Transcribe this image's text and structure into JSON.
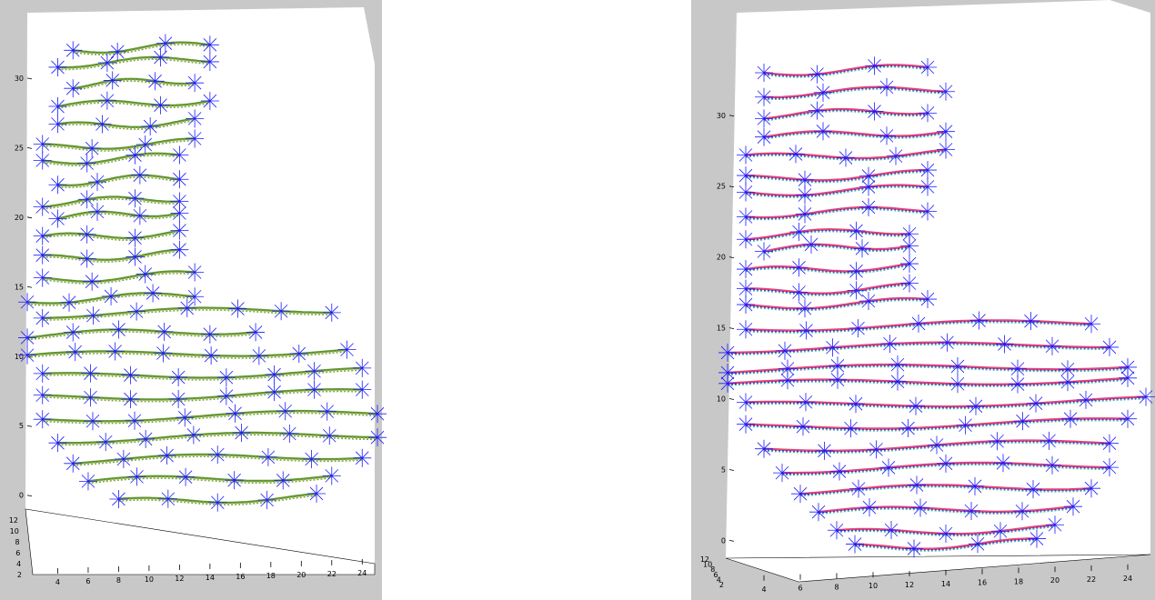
{
  "colors": {
    "background": "#ffffff",
    "pane": "#c8c8c8",
    "marker": "#1a1aff",
    "left_trace": [
      "#4e8a1c",
      "#a8c25a",
      "#7a9a3a"
    ],
    "right_trace": [
      "#e0306a",
      "#2a2ad0",
      "#30b8a0"
    ]
  },
  "chart_data": [
    {
      "type": "scatter",
      "projection": "3d",
      "title": "",
      "xlabel": "",
      "ylabel": "",
      "zlabel": "",
      "xlim": [
        2,
        25
      ],
      "ylim": [
        2,
        13
      ],
      "zlim": [
        -1,
        33
      ],
      "x_ticks": [
        "4",
        "6",
        "8",
        "10",
        "12",
        "14",
        "16",
        "18",
        "20",
        "22",
        "24"
      ],
      "y_ticks": [
        "2",
        "4",
        "6",
        "8",
        "10",
        "12"
      ],
      "z_ticks": [
        "0",
        "5",
        "10",
        "15",
        "20",
        "25",
        "30"
      ],
      "grid": false,
      "legend": false,
      "marker": "blue asterisk",
      "trace_colors": [
        "#4e8a1c",
        "#a8c25a",
        "#7a9a3a"
      ],
      "slices": [
        {
          "z": 32.0,
          "x": [
            5,
            14
          ]
        },
        {
          "z": 31.0,
          "x": [
            4,
            14
          ]
        },
        {
          "z": 29.5,
          "x": [
            5,
            13
          ]
        },
        {
          "z": 28.0,
          "x": [
            4,
            14
          ]
        },
        {
          "z": 26.5,
          "x": [
            4,
            13
          ]
        },
        {
          "z": 25.0,
          "x": [
            3,
            13
          ]
        },
        {
          "z": 24.0,
          "x": [
            3,
            12
          ]
        },
        {
          "z": 22.5,
          "x": [
            4,
            12
          ]
        },
        {
          "z": 21.0,
          "x": [
            3,
            12
          ]
        },
        {
          "z": 20.0,
          "x": [
            4,
            12
          ]
        },
        {
          "z": 18.5,
          "x": [
            3,
            12
          ]
        },
        {
          "z": 17.0,
          "x": [
            3,
            12
          ]
        },
        {
          "z": 15.5,
          "x": [
            3,
            13
          ]
        },
        {
          "z": 14.0,
          "x": [
            2,
            13
          ]
        },
        {
          "z": 13.0,
          "x": [
            3,
            22
          ]
        },
        {
          "z": 11.5,
          "x": [
            2,
            17
          ]
        },
        {
          "z": 10.0,
          "x": [
            2,
            23
          ]
        },
        {
          "z": 8.5,
          "x": [
            3,
            24
          ]
        },
        {
          "z": 7.0,
          "x": [
            3,
            24
          ]
        },
        {
          "z": 5.5,
          "x": [
            3,
            25
          ]
        },
        {
          "z": 4.0,
          "x": [
            4,
            25
          ]
        },
        {
          "z": 2.5,
          "x": [
            5,
            24
          ]
        },
        {
          "z": 1.0,
          "x": [
            6,
            22
          ]
        },
        {
          "z": -0.5,
          "x": [
            8,
            21
          ]
        }
      ]
    },
    {
      "type": "scatter",
      "projection": "3d",
      "title": "",
      "xlabel": "",
      "ylabel": "",
      "zlabel": "",
      "xlim": [
        2,
        25
      ],
      "ylim": [
        2,
        13
      ],
      "zlim": [
        -1,
        33
      ],
      "x_ticks": [
        "4",
        "6",
        "8",
        "10",
        "12",
        "14",
        "16",
        "18",
        "20",
        "22",
        "24"
      ],
      "y_ticks": [
        "2",
        "4",
        "6",
        "8",
        "10",
        "12"
      ],
      "z_ticks": [
        "0",
        "5",
        "10",
        "15",
        "20",
        "25",
        "30"
      ],
      "grid": false,
      "legend": false,
      "marker": "blue asterisk",
      "trace_colors": [
        "#e0306a",
        "#2a2ad0",
        "#30b8a0"
      ],
      "slices": [
        {
          "z": 33.0,
          "x": [
            4,
            13
          ]
        },
        {
          "z": 31.5,
          "x": [
            4,
            14
          ]
        },
        {
          "z": 30.0,
          "x": [
            4,
            13
          ]
        },
        {
          "z": 28.5,
          "x": [
            4,
            14
          ]
        },
        {
          "z": 27.0,
          "x": [
            3,
            14
          ]
        },
        {
          "z": 25.5,
          "x": [
            3,
            13
          ]
        },
        {
          "z": 24.5,
          "x": [
            3,
            13
          ]
        },
        {
          "z": 23.0,
          "x": [
            3,
            13
          ]
        },
        {
          "z": 21.5,
          "x": [
            3,
            12
          ]
        },
        {
          "z": 20.5,
          "x": [
            4,
            12
          ]
        },
        {
          "z": 19.0,
          "x": [
            3,
            12
          ]
        },
        {
          "z": 17.5,
          "x": [
            3,
            12
          ]
        },
        {
          "z": 16.5,
          "x": [
            3,
            13
          ]
        },
        {
          "z": 15.0,
          "x": [
            3,
            22
          ]
        },
        {
          "z": 13.5,
          "x": [
            2,
            23
          ]
        },
        {
          "z": 12.0,
          "x": [
            2,
            24
          ]
        },
        {
          "z": 11.0,
          "x": [
            2,
            24
          ]
        },
        {
          "z": 9.5,
          "x": [
            3,
            25
          ]
        },
        {
          "z": 8.0,
          "x": [
            3,
            24
          ]
        },
        {
          "z": 6.5,
          "x": [
            4,
            23
          ]
        },
        {
          "z": 5.0,
          "x": [
            5,
            23
          ]
        },
        {
          "z": 3.5,
          "x": [
            6,
            22
          ]
        },
        {
          "z": 2.0,
          "x": [
            7,
            21
          ]
        },
        {
          "z": 0.5,
          "x": [
            8,
            20
          ]
        },
        {
          "z": -0.5,
          "x": [
            9,
            19
          ]
        }
      ]
    }
  ]
}
